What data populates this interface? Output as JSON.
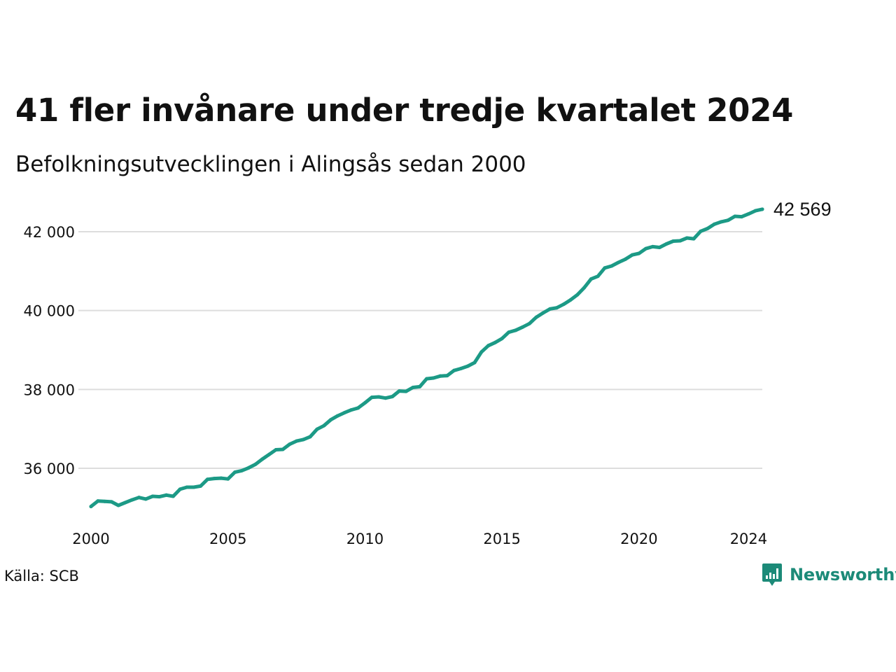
{
  "header": {
    "title": "41 fler invånare under tredje kvartalet 2024",
    "subtitle": "Befolkningsutvecklingen i Alingsås sedan 2000"
  },
  "footer": {
    "source": "Källa: SCB",
    "brand": "Newsworthy"
  },
  "colors": {
    "line": "#1c9a86",
    "grid": "#dddddd",
    "brand": "#1c8a78"
  },
  "chart_data": {
    "type": "line",
    "title": "41 fler invånare under tredje kvartalet 2024",
    "subtitle": "Befolkningsutvecklingen i Alingsås sedan 2000",
    "xlabel": "",
    "ylabel": "",
    "xlim": [
      2000,
      2024.5
    ],
    "ylim": [
      34700,
      42900
    ],
    "x_ticks": [
      2000,
      2005,
      2010,
      2015,
      2020,
      2024
    ],
    "x_tick_labels": [
      "2000",
      "2005",
      "2010",
      "2015",
      "2020",
      "2024"
    ],
    "y_ticks": [
      36000,
      38000,
      40000,
      42000
    ],
    "y_tick_labels": [
      "36 000",
      "38 000",
      "40 000",
      "42 000"
    ],
    "grid": "horizontal",
    "end_label": "42 569",
    "series": [
      {
        "x": [
          2000.0,
          2000.25,
          2000.5,
          2000.75,
          2001.0,
          2001.25,
          2001.5,
          2001.75,
          2002.0,
          2002.25,
          2002.5,
          2002.75,
          2003.0,
          2003.25,
          2003.5,
          2003.75,
          2004.0,
          2004.25,
          2004.5,
          2004.75,
          2005.0,
          2005.25,
          2005.5,
          2005.75,
          2006.0,
          2006.25,
          2006.5,
          2006.75,
          2007.0,
          2007.25,
          2007.5,
          2007.75,
          2008.0,
          2008.25,
          2008.5,
          2008.75,
          2009.0,
          2009.25,
          2009.5,
          2009.75,
          2010.0,
          2010.25,
          2010.5,
          2010.75,
          2011.0,
          2011.25,
          2011.5,
          2011.75,
          2012.0,
          2012.25,
          2012.5,
          2012.75,
          2013.0,
          2013.25,
          2013.5,
          2013.75,
          2014.0,
          2014.25,
          2014.5,
          2014.75,
          2015.0,
          2015.25,
          2015.5,
          2015.75,
          2016.0,
          2016.25,
          2016.5,
          2016.75,
          2017.0,
          2017.25,
          2017.5,
          2017.75,
          2018.0,
          2018.25,
          2018.5,
          2018.75,
          2019.0,
          2019.25,
          2019.5,
          2019.75,
          2020.0,
          2020.25,
          2020.5,
          2020.75,
          2021.0,
          2021.25,
          2021.5,
          2021.75,
          2022.0,
          2022.25,
          2022.5,
          2022.75,
          2023.0,
          2023.25,
          2023.5,
          2023.75,
          2024.0,
          2024.25,
          2024.5
        ],
        "values": [
          35030,
          35170,
          35160,
          35150,
          35060,
          35130,
          35200,
          35260,
          35220,
          35290,
          35280,
          35320,
          35290,
          35470,
          35520,
          35520,
          35550,
          35720,
          35740,
          35750,
          35730,
          35900,
          35940,
          36010,
          36100,
          36230,
          36350,
          36470,
          36480,
          36610,
          36690,
          36730,
          36800,
          36990,
          37080,
          37230,
          37330,
          37410,
          37480,
          37530,
          37660,
          37800,
          37810,
          37780,
          37820,
          37960,
          37950,
          38050,
          38070,
          38270,
          38290,
          38340,
          38350,
          38480,
          38530,
          38590,
          38680,
          38950,
          39110,
          39190,
          39290,
          39450,
          39500,
          39580,
          39670,
          39830,
          39940,
          40040,
          40070,
          40160,
          40270,
          40400,
          40580,
          40800,
          40870,
          41080,
          41130,
          41220,
          41300,
          41410,
          41450,
          41570,
          41620,
          41600,
          41690,
          41760,
          41770,
          41840,
          41820,
          42010,
          42080,
          42190,
          42250,
          42290,
          42390,
          42380,
          42450,
          42530,
          42569
        ]
      }
    ]
  }
}
